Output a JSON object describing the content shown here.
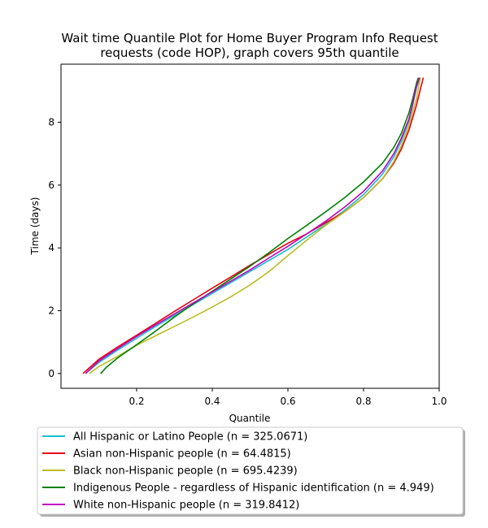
{
  "chart_data": {
    "type": "line",
    "title_line1": "Wait time Quantile Plot for Home Buyer Program Info Request",
    "title_line2": "requests (code HOP), graph covers 95th quantile",
    "xlabel": "Quantile",
    "ylabel": "Time (days)",
    "xlim": [
      0.0,
      1.0
    ],
    "ylim": [
      -0.47,
      9.85
    ],
    "x_ticks": [
      0.2,
      0.4,
      0.6,
      0.8,
      1.0
    ],
    "x_tick_labels": [
      "0.2",
      "0.4",
      "0.6",
      "0.8",
      "1.0"
    ],
    "y_ticks": [
      0,
      2,
      4,
      6,
      8
    ],
    "y_tick_labels": [
      "0",
      "2",
      "4",
      "6",
      "8"
    ],
    "grid": false,
    "legend_position": "below",
    "series": [
      {
        "name": "All Hispanic or Latino People (n = 325.0671)",
        "color": "#17becf",
        "x": [
          0.065,
          0.1,
          0.15,
          0.2,
          0.25,
          0.3,
          0.35,
          0.4,
          0.45,
          0.5,
          0.55,
          0.6,
          0.65,
          0.7,
          0.75,
          0.8,
          0.85,
          0.88,
          0.9,
          0.92,
          0.93,
          0.94,
          0.948
        ],
        "y": [
          0.0,
          0.35,
          0.75,
          1.12,
          1.5,
          1.85,
          2.2,
          2.55,
          2.9,
          3.25,
          3.6,
          3.95,
          4.35,
          4.75,
          5.2,
          5.7,
          6.35,
          6.9,
          7.4,
          8.05,
          8.55,
          9.1,
          9.42
        ]
      },
      {
        "name": "Asian non-Hispanic people (n = 64.4815)",
        "color": "#e8000b",
        "x": [
          0.058,
          0.1,
          0.15,
          0.2,
          0.25,
          0.3,
          0.35,
          0.4,
          0.45,
          0.5,
          0.55,
          0.6,
          0.65,
          0.7,
          0.75,
          0.8,
          0.85,
          0.88,
          0.9,
          0.92,
          0.94,
          0.95,
          0.958
        ],
        "y": [
          0.0,
          0.45,
          0.85,
          1.22,
          1.6,
          1.98,
          2.35,
          2.72,
          3.08,
          3.45,
          3.8,
          4.15,
          4.45,
          4.8,
          5.15,
          5.6,
          6.2,
          6.7,
          7.15,
          7.75,
          8.55,
          9.05,
          9.42
        ]
      },
      {
        "name": "Black non-Hispanic people (n = 695.4239)",
        "color": "#bcbd22",
        "x": [
          0.075,
          0.1,
          0.15,
          0.2,
          0.25,
          0.3,
          0.35,
          0.4,
          0.45,
          0.5,
          0.55,
          0.6,
          0.65,
          0.7,
          0.75,
          0.8,
          0.85,
          0.88,
          0.9,
          0.92,
          0.94,
          0.95
        ],
        "y": [
          0.0,
          0.22,
          0.55,
          0.9,
          1.2,
          1.5,
          1.8,
          2.12,
          2.45,
          2.82,
          3.25,
          3.75,
          4.25,
          4.72,
          5.15,
          5.6,
          6.2,
          6.75,
          7.25,
          7.9,
          8.75,
          9.42
        ]
      },
      {
        "name": "Indigenous People - regardless of Hispanic identification (n = 4.949)",
        "color": "#008000",
        "x": [
          0.105,
          0.12,
          0.15,
          0.2,
          0.25,
          0.3,
          0.35,
          0.4,
          0.45,
          0.5,
          0.55,
          0.6,
          0.65,
          0.7,
          0.75,
          0.8,
          0.85,
          0.88,
          0.9,
          0.92,
          0.93,
          0.94,
          0.945
        ],
        "y": [
          0.0,
          0.2,
          0.5,
          0.92,
          1.35,
          1.8,
          2.22,
          2.62,
          3.02,
          3.42,
          3.85,
          4.3,
          4.72,
          5.15,
          5.6,
          6.1,
          6.7,
          7.2,
          7.65,
          8.3,
          8.75,
          9.25,
          9.42
        ]
      },
      {
        "name": "White non-Hispanic people (n = 319.8412)",
        "color": "#bf00bf",
        "x": [
          0.065,
          0.1,
          0.15,
          0.2,
          0.25,
          0.3,
          0.35,
          0.4,
          0.45,
          0.5,
          0.55,
          0.6,
          0.65,
          0.7,
          0.75,
          0.8,
          0.85,
          0.88,
          0.9,
          0.92,
          0.93,
          0.94,
          0.948
        ],
        "y": [
          0.0,
          0.4,
          0.8,
          1.18,
          1.55,
          1.9,
          2.25,
          2.6,
          2.95,
          3.3,
          3.68,
          4.05,
          4.45,
          4.85,
          5.3,
          5.8,
          6.45,
          7.0,
          7.5,
          8.1,
          8.6,
          9.15,
          9.42
        ]
      }
    ]
  }
}
